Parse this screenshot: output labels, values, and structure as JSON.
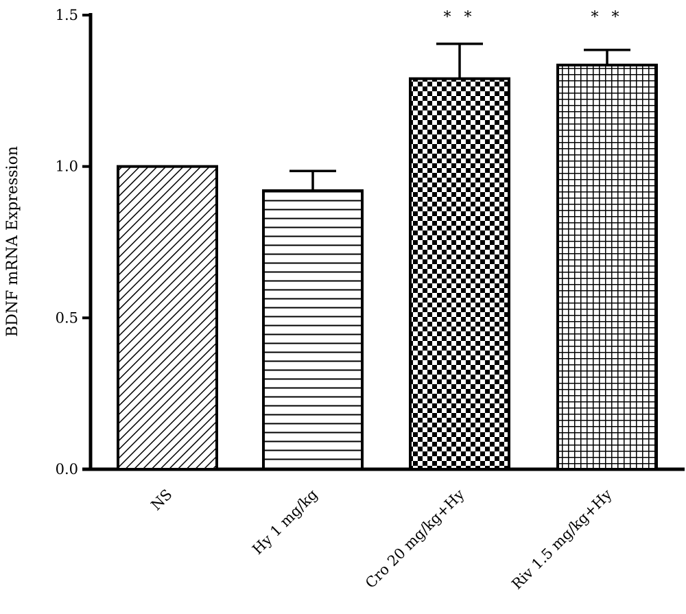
{
  "chart_data": {
    "type": "bar",
    "title": "",
    "xlabel": "",
    "ylabel": "BDNF mRNA Expression",
    "ylim": [
      0,
      1.5
    ],
    "yticks": [
      "0.0",
      "0.5",
      "1.0",
      "1.5"
    ],
    "grid": false,
    "categories": [
      "NS",
      "Hy 1 mg/kg",
      "Cro 20 mg/kg+Hy",
      "Riv 1.5 mg/kg+Hy"
    ],
    "values": [
      1.0,
      0.92,
      1.29,
      1.335
    ],
    "errors": [
      0,
      0.065,
      0.115,
      0.05
    ],
    "significance": [
      "",
      "",
      "* *",
      "* *"
    ],
    "patterns": [
      "diagonal-hatch",
      "horizontal-lines",
      "checkerboard",
      "grid"
    ],
    "colors": {
      "bar_fill": "#ffffff",
      "bar_stroke": "#000000",
      "axis": "#000000"
    }
  }
}
